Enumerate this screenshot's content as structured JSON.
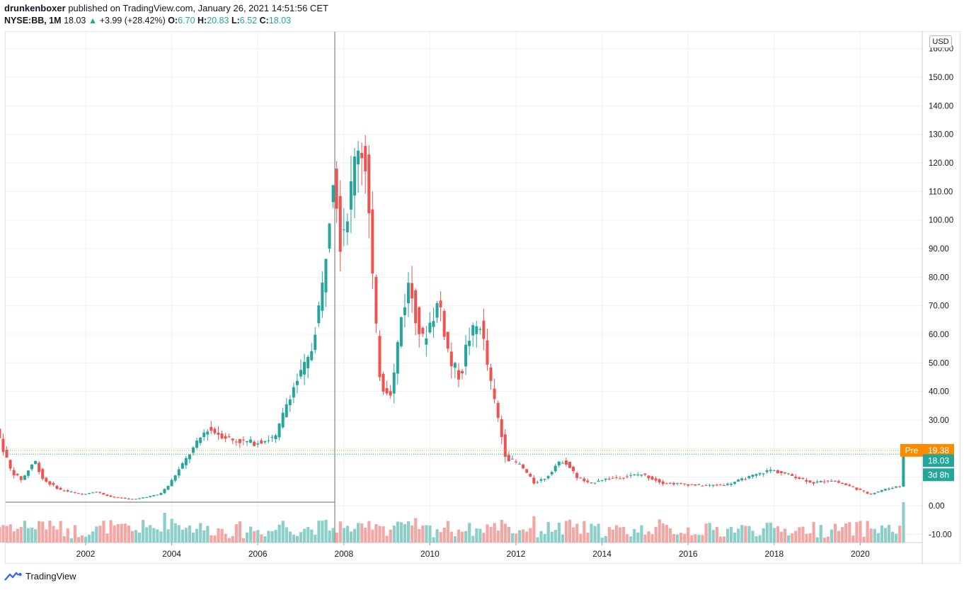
{
  "header": {
    "author": "drunkenboxer",
    "published_text": "published on TradingView.com, January 26, 2021 14:51:56 CET",
    "symbol": "NYSE:BB, 1M",
    "last": "18.03",
    "change_arrow": "▲",
    "change": "+3.99 (+28.42%)",
    "o_label": "O:",
    "o_value": "6.70",
    "h_label": "H:",
    "h_value": "20.83",
    "l_label": "L:",
    "l_value": "6.52",
    "c_label": "C:",
    "c_value": "18.03"
  },
  "currency_button": "USD",
  "price_tags": {
    "pre_label": "Pre",
    "pre_value": "19.38",
    "last_value": "18.03",
    "countdown": "3d 8h"
  },
  "footer": {
    "brand": "TradingView"
  },
  "colors": {
    "up": "#26a69a",
    "down": "#ef5350",
    "up_volume": "#8ccfc9",
    "down_volume": "#f3a7a5",
    "pre_tag": "#fb8c00"
  },
  "chart_data": {
    "type": "candlestick",
    "interval": "1M",
    "x_tick_labels": [
      "2002",
      "2004",
      "2006",
      "2008",
      "2010",
      "2012",
      "2014",
      "2016",
      "2018",
      "2020"
    ],
    "y_tick_labels": [
      "-10.00",
      "0.00",
      "10.00",
      "20.00",
      "30.00",
      "40.00",
      "50.00",
      "60.00",
      "70.00",
      "80.00",
      "90.00",
      "100.00",
      "110.00",
      "120.00",
      "130.00",
      "140.00",
      "150.00",
      "160.00"
    ],
    "ylim": [
      -13,
      162
    ],
    "grid": true,
    "horizontal_lines": [
      {
        "value": 19.38,
        "style": "dotted",
        "color": "#fb8c00"
      },
      {
        "value": 18.03,
        "style": "dotted",
        "color": "#26a69a"
      }
    ],
    "anchors": [
      {
        "t": 2000.0,
        "p": 27
      },
      {
        "t": 2000.35,
        "p": 12
      },
      {
        "t": 2000.6,
        "p": 9
      },
      {
        "t": 2000.9,
        "p": 16
      },
      {
        "t": 2001.1,
        "p": 9
      },
      {
        "t": 2001.5,
        "p": 5.5
      },
      {
        "t": 2002.0,
        "p": 4
      },
      {
        "t": 2002.3,
        "p": 5
      },
      {
        "t": 2002.7,
        "p": 3
      },
      {
        "t": 2003.2,
        "p": 2.2
      },
      {
        "t": 2003.8,
        "p": 4
      },
      {
        "t": 2004.0,
        "p": 7
      },
      {
        "t": 2004.4,
        "p": 16
      },
      {
        "t": 2004.9,
        "p": 27
      },
      {
        "t": 2005.5,
        "p": 23
      },
      {
        "t": 2006.0,
        "p": 22
      },
      {
        "t": 2006.5,
        "p": 24
      },
      {
        "t": 2006.8,
        "p": 38
      },
      {
        "t": 2007.0,
        "p": 44
      },
      {
        "t": 2007.3,
        "p": 52
      },
      {
        "t": 2007.6,
        "p": 78
      },
      {
        "t": 2007.85,
        "p": 120
      },
      {
        "t": 2008.0,
        "p": 94
      },
      {
        "t": 2008.2,
        "p": 105
      },
      {
        "t": 2008.4,
        "p": 128
      },
      {
        "t": 2008.6,
        "p": 120
      },
      {
        "t": 2008.8,
        "p": 65
      },
      {
        "t": 2008.95,
        "p": 42
      },
      {
        "t": 2009.2,
        "p": 40
      },
      {
        "t": 2009.4,
        "p": 65
      },
      {
        "t": 2009.6,
        "p": 78
      },
      {
        "t": 2009.9,
        "p": 57
      },
      {
        "t": 2010.3,
        "p": 72
      },
      {
        "t": 2010.55,
        "p": 50
      },
      {
        "t": 2010.8,
        "p": 45
      },
      {
        "t": 2010.95,
        "p": 58
      },
      {
        "t": 2011.25,
        "p": 64
      },
      {
        "t": 2011.5,
        "p": 42
      },
      {
        "t": 2011.7,
        "p": 28
      },
      {
        "t": 2011.85,
        "p": 17
      },
      {
        "t": 2012.2,
        "p": 14
      },
      {
        "t": 2012.5,
        "p": 8
      },
      {
        "t": 2012.8,
        "p": 10
      },
      {
        "t": 2013.0,
        "p": 14
      },
      {
        "t": 2013.2,
        "p": 16
      },
      {
        "t": 2013.5,
        "p": 10
      },
      {
        "t": 2013.8,
        "p": 7.5
      },
      {
        "t": 2014.0,
        "p": 9
      },
      {
        "t": 2014.5,
        "p": 10
      },
      {
        "t": 2015.0,
        "p": 11
      },
      {
        "t": 2015.5,
        "p": 8
      },
      {
        "t": 2016.0,
        "p": 7.5
      },
      {
        "t": 2016.5,
        "p": 7
      },
      {
        "t": 2017.0,
        "p": 7.5
      },
      {
        "t": 2017.5,
        "p": 10
      },
      {
        "t": 2018.0,
        "p": 12.5
      },
      {
        "t": 2018.5,
        "p": 10.5
      },
      {
        "t": 2019.0,
        "p": 8
      },
      {
        "t": 2019.4,
        "p": 9
      },
      {
        "t": 2019.9,
        "p": 6.5
      },
      {
        "t": 2020.3,
        "p": 4
      },
      {
        "t": 2020.6,
        "p": 5.5
      },
      {
        "t": 2020.92,
        "p": 6.7
      }
    ],
    "last_candle": {
      "open": 6.7,
      "high": 20.83,
      "low": 6.52,
      "close": 18.03
    }
  }
}
